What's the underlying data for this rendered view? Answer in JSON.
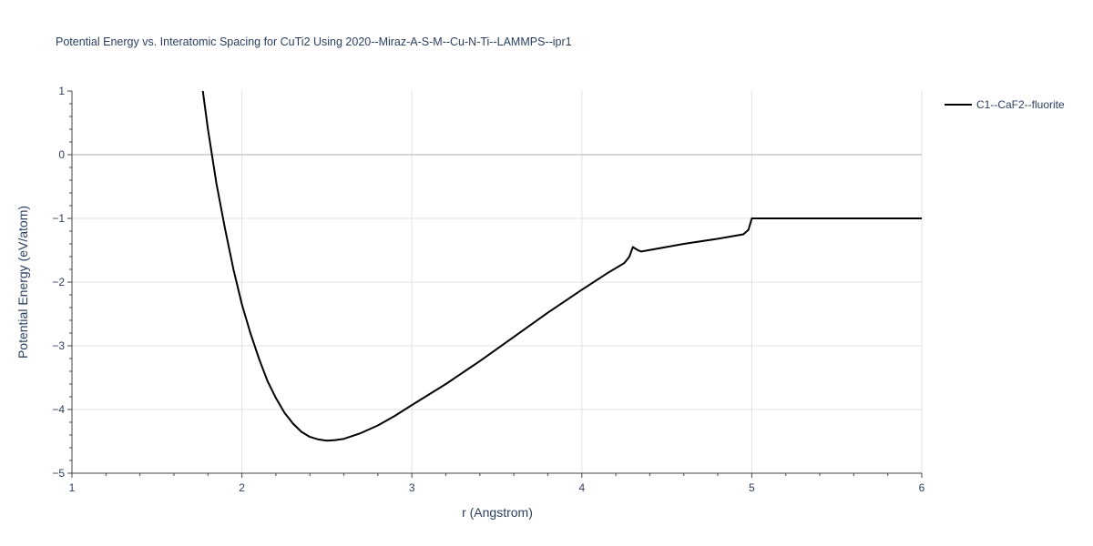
{
  "chart_data": {
    "type": "line",
    "title": "Potential Energy vs. Interatomic Spacing for CuTi2 Using 2020--Miraz-A-S-M--Cu-N-Ti--LAMMPS--ipr1",
    "xlabel": "r (Angstrom)",
    "ylabel": "Potential Energy (eV/atom)",
    "xlim": [
      1,
      6
    ],
    "ylim": [
      -5,
      1
    ],
    "xticks": [
      1,
      2,
      3,
      4,
      5,
      6
    ],
    "xtick_labels": [
      "1",
      "2",
      "3",
      "4",
      "5",
      "6"
    ],
    "yticks": [
      1,
      0,
      -1,
      -2,
      -3,
      -4,
      -5
    ],
    "ytick_labels": [
      "1",
      "0",
      "−1",
      "−2",
      "−3",
      "−4",
      "−5"
    ],
    "grid": true,
    "legend_position": "top-right",
    "series": [
      {
        "name": "C1--CaF2--fluorite",
        "color": "#000000",
        "x": [
          1.77,
          1.8,
          1.85,
          1.9,
          1.95,
          2.0,
          2.05,
          2.1,
          2.15,
          2.2,
          2.25,
          2.3,
          2.35,
          2.4,
          2.45,
          2.5,
          2.55,
          2.6,
          2.7,
          2.8,
          2.9,
          3.0,
          3.2,
          3.4,
          3.6,
          3.8,
          4.0,
          4.15,
          4.25,
          4.28,
          4.3,
          4.33,
          4.35,
          4.6,
          4.8,
          4.95,
          4.98,
          5.0,
          5.5,
          6.0
        ],
        "y": [
          1.0,
          0.4,
          -0.45,
          -1.15,
          -1.8,
          -2.35,
          -2.8,
          -3.2,
          -3.55,
          -3.82,
          -4.05,
          -4.22,
          -4.35,
          -4.43,
          -4.47,
          -4.49,
          -4.48,
          -4.46,
          -4.37,
          -4.25,
          -4.1,
          -3.93,
          -3.6,
          -3.24,
          -2.86,
          -2.48,
          -2.12,
          -1.86,
          -1.7,
          -1.6,
          -1.45,
          -1.5,
          -1.52,
          -1.4,
          -1.32,
          -1.25,
          -1.18,
          -1.0,
          -1.0,
          -1.0
        ]
      }
    ]
  }
}
